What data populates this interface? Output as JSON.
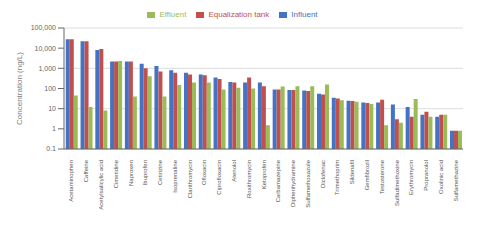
{
  "chart_data": {
    "type": "bar",
    "ylabel": "Concentration (ng/L)",
    "categories": [
      "Acetaminophen",
      "Caffeine",
      "Acetylsalicylic acid",
      "Cimetidine",
      "Naproxen",
      "Ibuprofen",
      "Cetirizine",
      "Isoprenaline",
      "Clarithromycin",
      "Ofloxacin",
      "Ciprofloxacin",
      "Atenolol",
      "Roxithromycin",
      "Ketoprofen",
      "Carbamazepine",
      "Diphenhydramine",
      "Sulfamethoxazole",
      "Diclofenac",
      "Trimethoprim",
      "Sildenafil",
      "Gemfibrozil",
      "Testosterone",
      "Sulfadimethoxine",
      "Erythromycin",
      "Propranolol",
      "Oxolinic acid",
      "Sulfamethazine"
    ],
    "series": [
      {
        "name": "Influent",
        "color": "#4472C4",
        "values": [
          28000,
          22000,
          8000,
          2200,
          2200,
          1700,
          1300,
          800,
          600,
          500,
          350,
          210,
          200,
          200,
          90,
          85,
          80,
          55,
          35,
          25,
          20,
          20,
          16,
          12,
          5,
          4,
          0.8
        ]
      },
      {
        "name": "Equalization tank",
        "color": "#C0504D",
        "values": [
          28000,
          22000,
          9000,
          2200,
          2200,
          1000,
          700,
          600,
          500,
          450,
          300,
          200,
          350,
          130,
          90,
          85,
          75,
          50,
          32,
          24,
          19,
          28,
          3,
          4,
          7,
          5,
          0.8
        ]
      },
      {
        "name": "Effluent",
        "color": "#9BBB59",
        "values": [
          45,
          12,
          8,
          2300,
          40,
          400,
          40,
          150,
          200,
          200,
          90,
          110,
          100,
          1.5,
          125,
          130,
          130,
          160,
          26,
          22,
          17,
          1.5,
          2,
          30,
          4,
          5,
          0.8
        ]
      }
    ],
    "log": "y",
    "ylim": [
      0.1,
      100000
    ],
    "yticks": [
      0.1,
      1,
      10,
      100,
      {
        "value": 1000,
        "label": "1,000"
      },
      {
        "value": 10000,
        "label": "10,000"
      },
      {
        "value": 100000,
        "label": "100,000"
      }
    ],
    "grid": true,
    "legend": "top"
  }
}
